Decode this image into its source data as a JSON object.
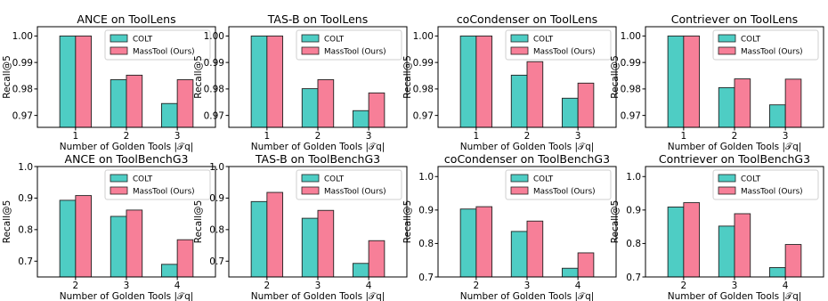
{
  "figure": {
    "xlabel": "Number of Golden Tools |𝒯q|",
    "ylabel": "Recall@5",
    "colors": {
      "COLT": "#4ecdc4",
      "MassTool (Ours)": "#f77f98"
    }
  },
  "chart_data": [
    {
      "type": "bar",
      "title": "ANCE on ToolLens",
      "categories": [
        "1",
        "2",
        "3"
      ],
      "ylim": [
        0.9655,
        1.0035
      ],
      "yticks": [
        "0.97",
        "0.98",
        "0.99",
        "1.00"
      ],
      "legend": "top-right",
      "series": [
        {
          "name": "COLT",
          "values": [
            1.0,
            0.9835,
            0.9745
          ]
        },
        {
          "name": "MassTool (Ours)",
          "values": [
            1.0,
            0.9852,
            0.9835
          ]
        }
      ]
    },
    {
      "type": "bar",
      "title": "TAS-B on ToolLens",
      "categories": [
        "1",
        "2",
        "3"
      ],
      "ylim": [
        0.9655,
        1.0035
      ],
      "yticks": [
        "0.97",
        "0.98",
        "0.99",
        "1.00"
      ],
      "legend": "top-right",
      "series": [
        {
          "name": "COLT",
          "values": [
            1.0,
            0.9801,
            0.9718
          ]
        },
        {
          "name": "MassTool (Ours)",
          "values": [
            1.0,
            0.9835,
            0.9785
          ]
        }
      ]
    },
    {
      "type": "bar",
      "title": "coCondenser on ToolLens",
      "categories": [
        "1",
        "2",
        "3"
      ],
      "ylim": [
        0.9655,
        1.0035
      ],
      "yticks": [
        "0.97",
        "0.98",
        "0.99",
        "1.00"
      ],
      "legend": "top-right",
      "series": [
        {
          "name": "COLT",
          "values": [
            1.0,
            0.9852,
            0.9765
          ]
        },
        {
          "name": "MassTool (Ours)",
          "values": [
            1.0,
            0.9903,
            0.9822
          ]
        }
      ]
    },
    {
      "type": "bar",
      "title": "Contriever on ToolLens",
      "categories": [
        "1",
        "2",
        "3"
      ],
      "ylim": [
        0.9655,
        1.0035
      ],
      "yticks": [
        "0.97",
        "0.98",
        "0.99",
        "1.00"
      ],
      "legend": "top-right",
      "series": [
        {
          "name": "COLT",
          "values": [
            1.0,
            0.9805,
            0.974
          ]
        },
        {
          "name": "MassTool (Ours)",
          "values": [
            1.0,
            0.9838,
            0.9837
          ]
        }
      ]
    },
    {
      "type": "bar",
      "title": "ANCE on ToolBenchG3",
      "categories": [
        "2",
        "3",
        "4"
      ],
      "ylim": [
        0.65,
        1.0
      ],
      "yticks": [
        "0.7",
        "0.8",
        "0.9",
        "1.0"
      ],
      "legend": "top-right",
      "series": [
        {
          "name": "COLT",
          "values": [
            0.893,
            0.842,
            0.69
          ]
        },
        {
          "name": "MassTool (Ours)",
          "values": [
            0.908,
            0.862,
            0.768
          ]
        }
      ]
    },
    {
      "type": "bar",
      "title": "TAS-B on ToolBenchG3",
      "categories": [
        "2",
        "3",
        "4"
      ],
      "ylim": [
        0.65,
        1.0
      ],
      "yticks": [
        "0.7",
        "0.8",
        "0.9",
        "1.0"
      ],
      "legend": "top-right",
      "series": [
        {
          "name": "COLT",
          "values": [
            0.889,
            0.836,
            0.693
          ]
        },
        {
          "name": "MassTool (Ours)",
          "values": [
            0.918,
            0.861,
            0.765
          ]
        }
      ]
    },
    {
      "type": "bar",
      "title": "coCondenser on ToolBenchG3",
      "categories": [
        "2",
        "3",
        "4"
      ],
      "ylim": [
        0.7,
        1.03
      ],
      "yticks": [
        "0.7",
        "0.8",
        "0.9",
        "1.0"
      ],
      "legend": "top-right",
      "series": [
        {
          "name": "COLT",
          "values": [
            0.903,
            0.836,
            0.726
          ]
        },
        {
          "name": "MassTool (Ours)",
          "values": [
            0.91,
            0.867,
            0.772
          ]
        }
      ]
    },
    {
      "type": "bar",
      "title": "Contriever on ToolBenchG3",
      "categories": [
        "2",
        "3",
        "4"
      ],
      "ylim": [
        0.7,
        1.03
      ],
      "yticks": [
        "0.7",
        "0.8",
        "0.9",
        "1.0"
      ],
      "legend": "top-right",
      "series": [
        {
          "name": "COLT",
          "values": [
            0.909,
            0.852,
            0.728
          ]
        },
        {
          "name": "MassTool (Ours)",
          "values": [
            0.922,
            0.889,
            0.797
          ]
        }
      ]
    }
  ]
}
